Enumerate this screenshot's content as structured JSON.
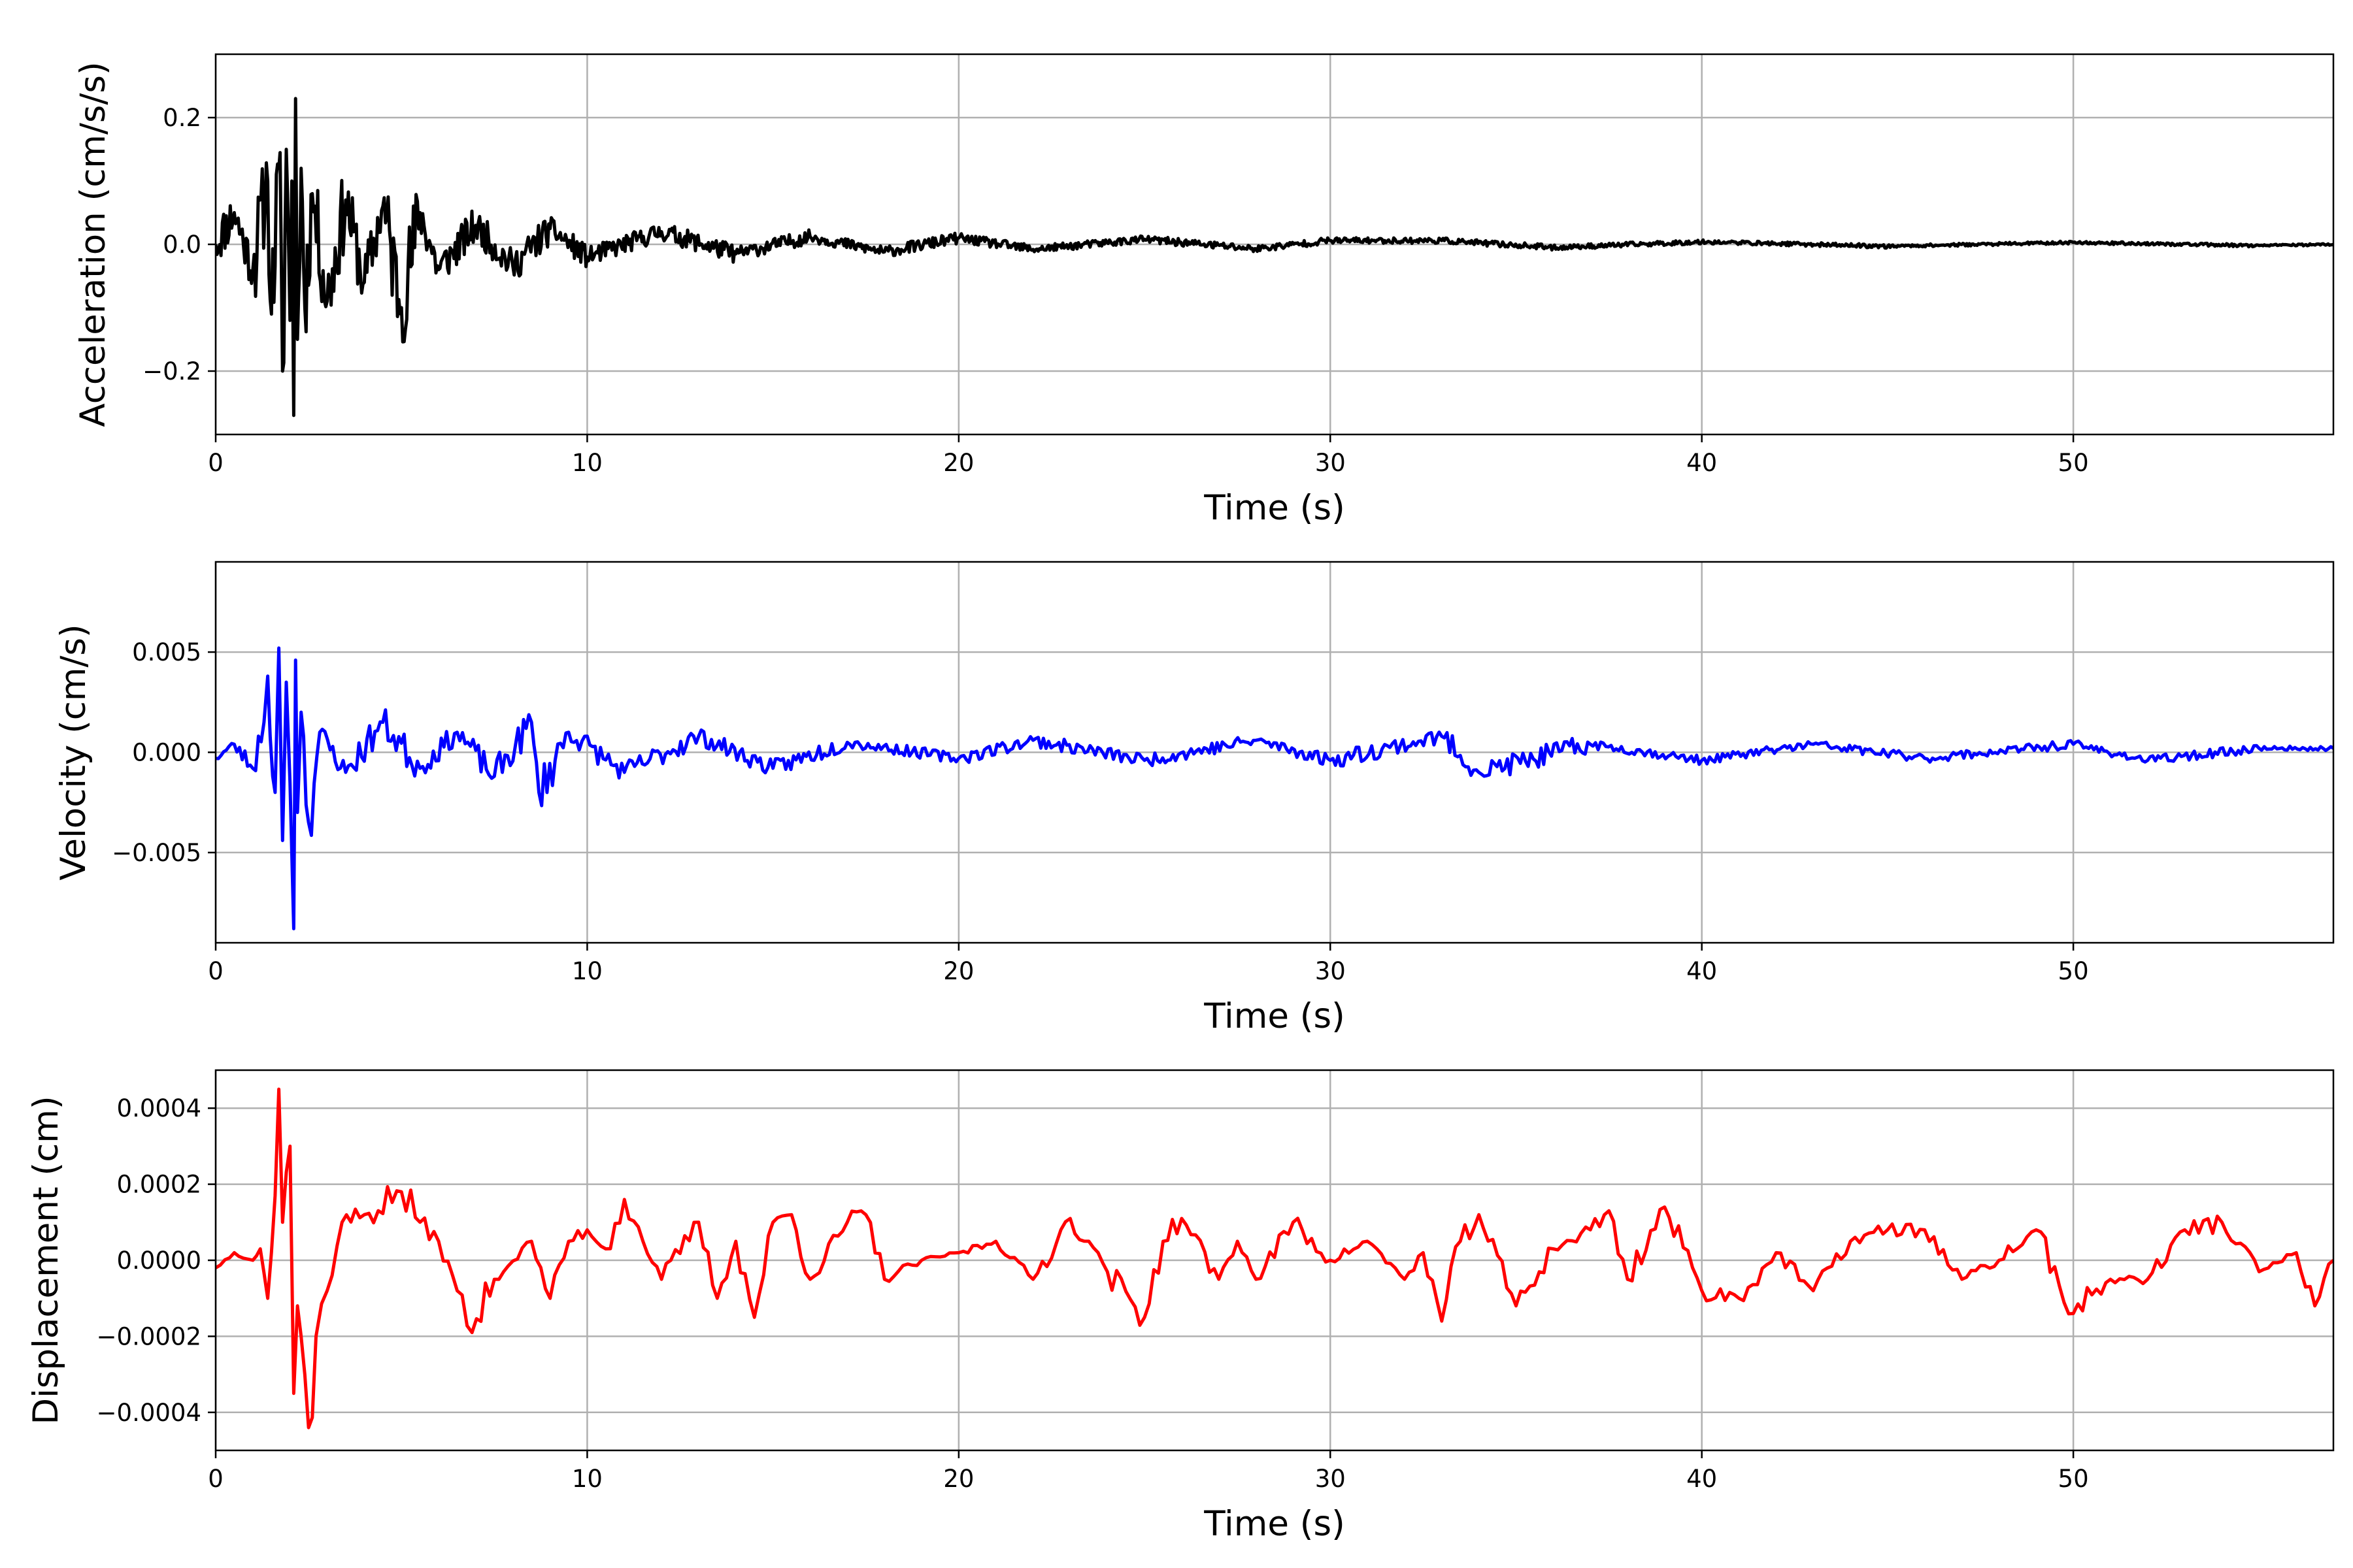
{
  "chart_data": [
    {
      "type": "line",
      "xlabel": "Time (s)",
      "ylabel": "Acceleration (cm/s/s)",
      "xlim": [
        0,
        57
      ],
      "ylim": [
        -0.3,
        0.3
      ],
      "xticks": [
        0,
        10,
        20,
        30,
        40,
        50
      ],
      "xtick_labels": [
        "0",
        "10",
        "20",
        "30",
        "40",
        "50"
      ],
      "yticks": [
        -0.2,
        0.0,
        0.2
      ],
      "ytick_labels": [
        "−0.2",
        "0.0",
        "0.2"
      ],
      "grid": true,
      "color": "#000000",
      "series": [
        {
          "x": [
            0,
            0.5,
            1,
            1.4,
            1.5,
            1.7,
            1.8,
            1.9,
            2,
            2.05,
            2.1,
            2.15,
            2.2,
            2.3,
            2.4,
            2.6,
            3,
            3.5,
            4,
            4.5,
            5,
            5.5,
            6,
            7,
            8,
            9,
            10,
            12,
            14,
            16,
            18,
            20,
            22,
            25,
            28,
            30,
            33,
            36,
            40,
            45,
            50,
            55,
            57
          ],
          "y": [
            0,
            0.05,
            -0.04,
            0.1,
            -0.11,
            0.12,
            -0.2,
            0.15,
            -0.12,
            0.1,
            -0.27,
            0.23,
            -0.15,
            0.12,
            -0.1,
            0.08,
            -0.09,
            0.07,
            -0.06,
            0.06,
            -0.1,
            0.05,
            -0.04,
            0.03,
            -0.035,
            0.025,
            -0.02,
            0.02,
            -0.015,
            0.012,
            -0.012,
            0.01,
            -0.008,
            0.008,
            -0.007,
            0.006,
            0.006,
            -0.005,
            0.004,
            -0.003,
            0.003,
            -0.002,
            0
          ]
        }
      ]
    },
    {
      "type": "line",
      "xlabel": "Time (s)",
      "ylabel": "Velocity (cm/s)",
      "xlim": [
        0,
        57
      ],
      "ylim": [
        -0.0095,
        0.0095
      ],
      "xticks": [
        0,
        10,
        20,
        30,
        40,
        50
      ],
      "xtick_labels": [
        "0",
        "10",
        "20",
        "30",
        "40",
        "50"
      ],
      "yticks": [
        -0.005,
        0.0,
        0.005
      ],
      "ytick_labels": [
        "−0.005",
        "0.000",
        "0.005"
      ],
      "grid": true,
      "color": "#0000ff",
      "series": [
        {
          "x": [
            0,
            0.5,
            1,
            1.3,
            1.4,
            1.6,
            1.7,
            1.8,
            1.9,
            2,
            2.1,
            2.15,
            2.2,
            2.3,
            2.5,
            2.8,
            3.5,
            4.5,
            5.5,
            6.5,
            7.5,
            8.5,
            8.7,
            9.5,
            11,
            13,
            15,
            17,
            20,
            22,
            25,
            28,
            30,
            33,
            34,
            37,
            40,
            43,
            46,
            50,
            52,
            55,
            57
          ],
          "y": [
            -0.0003,
            0.0004,
            -0.0008,
            0.0015,
            0.0038,
            -0.002,
            0.0052,
            -0.0044,
            0.0035,
            -0.0015,
            -0.0088,
            0.0046,
            -0.003,
            0.002,
            -0.0035,
            0.001,
            -0.001,
            0.0015,
            -0.0008,
            0.001,
            -0.0012,
            0.0015,
            -0.002,
            0.001,
            -0.001,
            0.0008,
            -0.0008,
            0.0005,
            -0.0003,
            0.0006,
            -0.0004,
            0.0006,
            -0.0004,
            0.0008,
            -0.001,
            0.0004,
            -0.0004,
            0.0004,
            -0.0003,
            0.0004,
            -0.0004,
            0.0002,
            0.0002
          ]
        }
      ]
    },
    {
      "type": "line",
      "xlabel": "Time (s)",
      "ylabel": "Displacement (cm)",
      "xlim": [
        0,
        57
      ],
      "ylim": [
        -0.0005,
        0.0005
      ],
      "xticks": [
        0,
        10,
        20,
        30,
        40,
        50
      ],
      "xtick_labels": [
        "0",
        "10",
        "20",
        "30",
        "40",
        "50"
      ],
      "yticks": [
        -0.0004,
        -0.0002,
        0.0,
        0.0002,
        0.0004
      ],
      "ytick_labels": [
        "−0.0004",
        "−0.0002",
        "0.0000",
        "0.0002",
        "0.0004"
      ],
      "grid": true,
      "color": "#ff0000",
      "series": [
        {
          "x": [
            0,
            0.5,
            1,
            1.2,
            1.4,
            1.6,
            1.7,
            1.8,
            2,
            2.1,
            2.2,
            2.3,
            2.5,
            2.7,
            3,
            3.4,
            4,
            5,
            5.5,
            6,
            6.5,
            6.9,
            7.5,
            8.5,
            9,
            9.5,
            10,
            10.5,
            11,
            11.5,
            12,
            13,
            13.5,
            14,
            14.5,
            15,
            15.5,
            16,
            17,
            17.5,
            18,
            19,
            20,
            21,
            22,
            23,
            23.5,
            24,
            25,
            25.5,
            26,
            27,
            27.5,
            28,
            29,
            30,
            31,
            32,
            32.5,
            33,
            33.5,
            34,
            35,
            36,
            37,
            37.5,
            38,
            39,
            40,
            41,
            42,
            43,
            44,
            45,
            46,
            47,
            48,
            49,
            50,
            51,
            52,
            53,
            54,
            55,
            56,
            56.5,
            57
          ],
          "y": [
            -2e-05,
            2e-05,
            0,
            3e-05,
            -0.0001,
            0.00017,
            0.00045,
            0.0001,
            0.0003,
            -0.00035,
            -0.00012,
            -0.0002,
            -0.00044,
            -0.0002,
            -8e-05,
            0.0001,
            0.00012,
            0.00018,
            0.0001,
            5e-05,
            -8e-05,
            -0.00019,
            -5e-05,
            5e-05,
            -0.0001,
            5e-05,
            8e-05,
            3e-05,
            0.00016,
            5e-05,
            -5e-05,
            0.0001,
            -0.0001,
            5e-05,
            -0.00015,
            0.0001,
            0.00012,
            -5e-05,
            0.0001,
            0.00012,
            -5e-05,
            0,
            2e-05,
            5e-05,
            -5e-05,
            0.00011,
            5e-05,
            -3e-05,
            -0.00015,
            5e-05,
            0.00011,
            -5e-05,
            5e-05,
            -5e-05,
            0.0001,
            0,
            5e-05,
            -5e-05,
            2e-05,
            -0.00016,
            5e-05,
            0.00012,
            -0.00012,
            3e-05,
            8e-05,
            0.00013,
            -5e-05,
            0.00014,
            -8e-05,
            -0.0001,
            2e-05,
            -8e-05,
            5e-05,
            8e-05,
            8e-05,
            -5e-05,
            0,
            8e-05,
            -0.00014,
            -5e-05,
            -5e-05,
            8e-05,
            0.0001,
            -3e-05,
            2e-05,
            -0.00012,
            0
          ]
        }
      ]
    }
  ]
}
